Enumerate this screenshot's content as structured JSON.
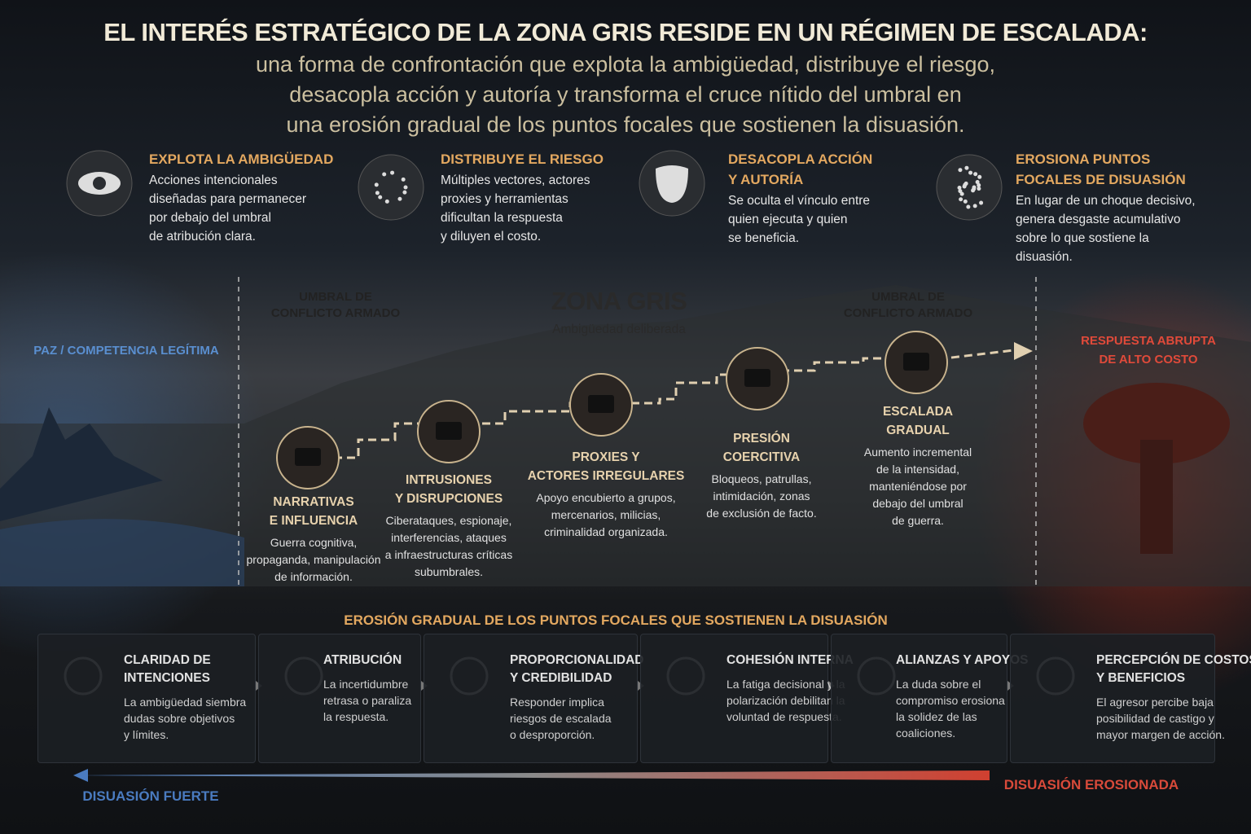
{
  "header": {
    "title": "EL INTERÉS ESTRATÉGICO DE LA ZONA GRIS RESIDE EN UN RÉGIMEN DE ESCALADA:",
    "subtitle_lines": [
      "una forma de confrontación que explota la ambigüedad, distribuye el riesgo,",
      "desacopla acción y autoría y transforma el cruce nítido del umbral en",
      "una erosión gradual de los puntos focales que sostienen la disuasión."
    ]
  },
  "features": [
    {
      "title": [
        "EXPLOTA LA AMBIGÜEDAD"
      ],
      "text": [
        "Acciones intencionales",
        "diseñadas para permanecer",
        "por debajo del umbral",
        "de atribución clara."
      ]
    },
    {
      "title": [
        "DISTRIBUYE EL RIESGO"
      ],
      "text": [
        "Múltiples vectores, actores",
        "proxies y herramientas",
        "dificultan la respuesta",
        "y diluyen el costo."
      ]
    },
    {
      "title": [
        "DESACOPLA ACCIÓN",
        "Y AUTORÍA"
      ],
      "text": [
        "Se oculta el vínculo entre",
        "quien ejecuta y quien",
        "se beneficia."
      ]
    },
    {
      "title": [
        "EROSIONA PUNTOS",
        "FOCALES DE DISUASIÓN"
      ],
      "text": [
        "En lugar de un choque decisivo,",
        "genera desgaste acumulativo",
        "sobre lo que sostiene la",
        "disuasión."
      ]
    }
  ],
  "left_label": "PAZ / COMPETENCIA LEGÍTIMA",
  "right_label": [
    "RESPUESTA ABRUPTA",
    "DE ALTO COSTO"
  ],
  "threshold_left": [
    "UMBRAL DE",
    "CONFLICTO ARMADO"
  ],
  "threshold_right": [
    "UMBRAL DE",
    "CONFLICTO ARMADO"
  ],
  "zone": {
    "title": "ZONA GRIS",
    "subtitle": "Ambigüedad deliberada"
  },
  "steps": [
    {
      "title": [
        "NARRATIVAS",
        "E INFLUENCIA"
      ],
      "text": [
        "Guerra cognitiva,",
        "propaganda, manipulación",
        "de información."
      ]
    },
    {
      "title": [
        "INTRUSIONES",
        "Y DISRUPCIONES"
      ],
      "text": [
        "Ciberataques, espionaje,",
        "interferencias, ataques",
        "a infraestructuras críticas",
        "subumbrales."
      ]
    },
    {
      "title": [
        "PROXIES Y",
        "ACTORES IRREGULARES"
      ],
      "text": [
        "Apoyo encubierto a grupos,",
        "mercenarios, milicias,",
        "criminalidad organizada."
      ]
    },
    {
      "title": [
        "PRESIÓN",
        "COERCITIVA"
      ],
      "text": [
        "Bloqueos, patrullas,",
        "intimidación, zonas",
        "de exclusión de facto."
      ]
    },
    {
      "title": [
        "ESCALADA",
        "GRADUAL"
      ],
      "text": [
        "Aumento incremental",
        "de la intensidad,",
        "manteniéndose por",
        "debajo del umbral",
        "de guerra."
      ]
    }
  ],
  "bottom": {
    "title": "EROSIÓN GRADUAL DE LOS PUNTOS FOCALES QUE SOSTIENEN LA DISUASIÓN",
    "cards": [
      {
        "title": [
          "CLARIDAD DE",
          "INTENCIONES"
        ],
        "text": [
          "La ambigüedad siembra",
          "dudas sobre objetivos",
          "y límites."
        ]
      },
      {
        "title": [
          "ATRIBUCIÓN"
        ],
        "text": [
          "La incertidumbre",
          "retrasa o paraliza",
          "la respuesta."
        ]
      },
      {
        "title": [
          "PROPORCIONALIDAD",
          "Y CREDIBILIDAD"
        ],
        "text": [
          "Responder implica",
          "riesgos de escalada",
          "o desproporción."
        ]
      },
      {
        "title": [
          "COHESIÓN INTERNA"
        ],
        "text": [
          "La fatiga decisional y la",
          "polarización debilitan la",
          "voluntad de respuesta."
        ]
      },
      {
        "title": [
          "ALIANZAS Y APOYOS"
        ],
        "text": [
          "La duda sobre el",
          "compromiso erosiona",
          "la solidez de las",
          "coaliciones."
        ]
      },
      {
        "title": [
          "PERCEPCIÓN DE COSTOS",
          "Y BENEFICIOS"
        ],
        "text": [
          "El agresor percibe baja",
          "posibilidad de castigo y",
          "mayor margen de acción."
        ]
      }
    ]
  },
  "scale": {
    "left": "DISUASIÓN FUERTE",
    "right": "DISUASIÓN EROSIONADA"
  }
}
